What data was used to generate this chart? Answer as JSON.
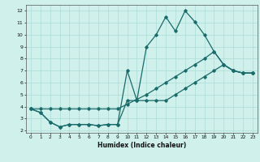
{
  "xlabel": "Humidex (Indice chaleur)",
  "background_color": "#cff0eb",
  "line_color": "#1a6b6b",
  "grid_color": "#aaddd8",
  "xlim": [
    -0.5,
    23.5
  ],
  "ylim": [
    1.8,
    12.5
  ],
  "xticks": [
    0,
    1,
    2,
    3,
    4,
    5,
    6,
    7,
    8,
    9,
    10,
    11,
    12,
    13,
    14,
    15,
    16,
    17,
    18,
    19,
    20,
    21,
    22,
    23
  ],
  "yticks": [
    2,
    3,
    4,
    5,
    6,
    7,
    8,
    9,
    10,
    11,
    12
  ],
  "series": [
    [
      3.8,
      3.5,
      2.7,
      2.3,
      2.5,
      2.5,
      2.5,
      2.4,
      2.5,
      2.5,
      7.0,
      4.5,
      9.0,
      10.0,
      11.5,
      10.3,
      12.0,
      11.1,
      10.0,
      8.6,
      7.5,
      7.0,
      6.8,
      6.8
    ],
    [
      3.8,
      3.5,
      2.7,
      2.3,
      2.5,
      2.5,
      2.5,
      2.4,
      2.5,
      2.5,
      4.5,
      4.5,
      4.5,
      4.5,
      4.5,
      5.0,
      5.5,
      6.0,
      6.5,
      7.0,
      7.5,
      7.0,
      6.8,
      6.8
    ],
    [
      3.8,
      3.8,
      3.8,
      3.8,
      3.8,
      3.8,
      3.8,
      3.8,
      3.8,
      3.8,
      4.2,
      4.6,
      5.0,
      5.5,
      6.0,
      6.5,
      7.0,
      7.5,
      8.0,
      8.6,
      7.5,
      7.0,
      6.8,
      6.8
    ]
  ]
}
